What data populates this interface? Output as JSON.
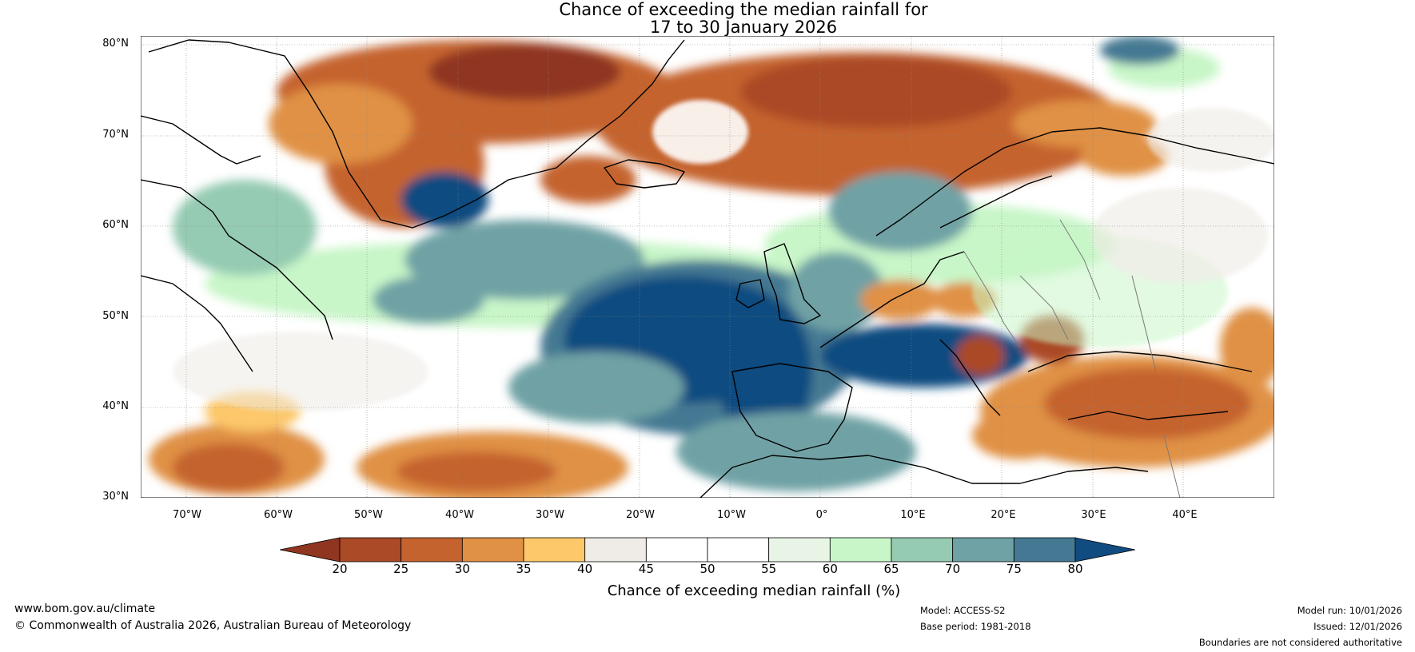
{
  "title": {
    "line1": "Chance of exceeding the median rainfall for",
    "line2": "17 to 30 January 2026"
  },
  "map": {
    "lat_labels": [
      "80°N",
      "70°N",
      "60°N",
      "50°N",
      "40°N",
      "30°N"
    ],
    "lon_labels": [
      "70°W",
      "60°W",
      "50°W",
      "40°W",
      "30°W",
      "20°W",
      "10°W",
      "0°",
      "10°E",
      "20°E",
      "30°E",
      "40°E"
    ],
    "lat_range": [
      30,
      81
    ],
    "lon_range": [
      -75,
      50
    ]
  },
  "legend": {
    "ticks": [
      "20",
      "25",
      "30",
      "35",
      "40",
      "45",
      "50",
      "55",
      "60",
      "65",
      "70",
      "75",
      "80"
    ],
    "colors": [
      "#8f3520",
      "#ab4a27",
      "#c5632f",
      "#e09145",
      "#fdc86a",
      "#efebe6",
      "#ffffff",
      "#ffffff",
      "#e8f5e6",
      "#c8f6c8",
      "#95cbb2",
      "#6fa2a5",
      "#457993",
      "#104c80"
    ],
    "title": "Chance of exceeding median rainfall (%)"
  },
  "footer": {
    "website": "www.bom.gov.au/climate",
    "copyright": "© Commonwealth of Australia 2026, Australian Bureau of Meteorology",
    "model": "Model: ACCESS-S2",
    "base_period": "Base period: 1981-2018",
    "model_run": "Model run: 10/01/2026",
    "issued": "Issued: 12/01/2026",
    "disclaimer": "Boundaries are not considered authoritative"
  }
}
